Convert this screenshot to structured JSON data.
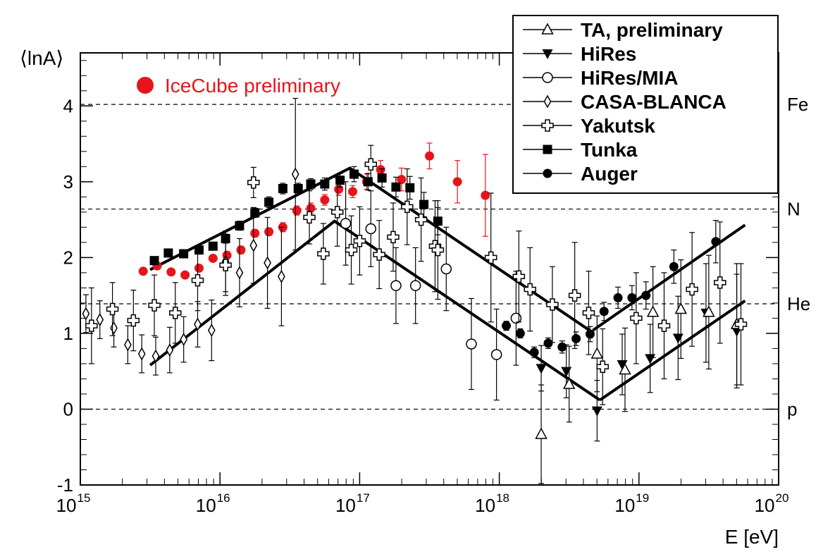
{
  "chart_data": {
    "type": "scatter",
    "title": "",
    "xlabel": "E [eV]",
    "ylabel": "⟨lnA⟩",
    "x_scale": "log10",
    "xlim_log10": [
      15,
      20
    ],
    "ylim": [
      -1,
      4.7
    ],
    "x_ticks": [
      {
        "base": "10",
        "exp": "15",
        "value": 15
      },
      {
        "base": "10",
        "exp": "16",
        "value": 16
      },
      {
        "base": "10",
        "exp": "17",
        "value": 17
      },
      {
        "base": "10",
        "exp": "18",
        "value": 18
      },
      {
        "base": "10",
        "exp": "19",
        "value": 19
      },
      {
        "base": "10",
        "exp": "20",
        "value": 20
      }
    ],
    "y_ticks": [
      {
        "label": "-1",
        "value": -1
      },
      {
        "label": "0",
        "value": 0
      },
      {
        "label": "1",
        "value": 1
      },
      {
        "label": "2",
        "value": 2
      },
      {
        "label": "3",
        "value": 3
      },
      {
        "label": "4",
        "value": 4
      }
    ],
    "reference_lines": [
      {
        "label": "Fe",
        "value": 4.02
      },
      {
        "label": "N",
        "value": 2.64
      },
      {
        "label": "He",
        "value": 1.39
      },
      {
        "label": "p",
        "value": 0
      }
    ],
    "annotation": {
      "label": "IceCube preliminary",
      "color": "#e8141b"
    },
    "model_lines": [
      {
        "name": "upper",
        "points": [
          [
            15.5,
            1.84
          ],
          [
            16.93,
            3.18
          ],
          [
            18.67,
            1.01
          ]
        ]
      },
      {
        "name": "upper-rise",
        "points": [
          [
            18.67,
            1.04
          ],
          [
            19.76,
            2.43
          ]
        ]
      },
      {
        "name": "lower",
        "points": [
          [
            15.5,
            0.58
          ],
          [
            16.82,
            2.48
          ],
          [
            18.72,
            0.12
          ]
        ]
      },
      {
        "name": "lower-rise",
        "points": [
          [
            18.72,
            0.12
          ],
          [
            19.76,
            1.43
          ]
        ]
      }
    ],
    "legend": {
      "position": "top-right",
      "entries": [
        {
          "label": "TA, preliminary",
          "marker": "triangle-up-open"
        },
        {
          "label": "HiRes",
          "marker": "triangle-down-filled"
        },
        {
          "label": "HiRes/MIA",
          "marker": "circle-open"
        },
        {
          "label": "CASA-BLANCA",
          "marker": "diamond-open"
        },
        {
          "label": "Yakutsk",
          "marker": "cross-open"
        },
        {
          "label": "Tunka",
          "marker": "square-filled"
        },
        {
          "label": "Auger",
          "marker": "circle-filled"
        }
      ]
    },
    "series": [
      {
        "name": "IceCube preliminary",
        "marker": "circle-filled",
        "color": "#e8141b",
        "points": [
          [
            15.45,
            1.82,
            0.04
          ],
          [
            15.55,
            1.89,
            0.04
          ],
          [
            15.65,
            1.81,
            0.04
          ],
          [
            15.75,
            1.77,
            0.04
          ],
          [
            15.85,
            1.86,
            0.04
          ],
          [
            15.95,
            1.99,
            0.04
          ],
          [
            16.05,
            2.03,
            0.05
          ],
          [
            16.15,
            2.1,
            0.05
          ],
          [
            16.25,
            2.32,
            0.05
          ],
          [
            16.35,
            2.34,
            0.05
          ],
          [
            16.45,
            2.4,
            0.06
          ],
          [
            16.55,
            2.62,
            0.06
          ],
          [
            16.65,
            2.65,
            0.07
          ],
          [
            16.75,
            2.76,
            0.07
          ],
          [
            16.85,
            2.9,
            0.08
          ],
          [
            16.95,
            2.87,
            0.08
          ],
          [
            17.05,
            3.0,
            0.1
          ],
          [
            17.15,
            3.16,
            0.12
          ],
          [
            17.3,
            3.03,
            0.15
          ],
          [
            17.5,
            3.34,
            0.17
          ],
          [
            17.7,
            3.0,
            0.28
          ],
          [
            17.9,
            2.82,
            0.54
          ]
        ]
      },
      {
        "name": "Tunka",
        "marker": "square-filled",
        "points": [
          [
            15.53,
            1.96,
            0.05
          ],
          [
            15.63,
            2.06,
            0.05
          ],
          [
            15.74,
            2.05,
            0.05
          ],
          [
            15.85,
            2.1,
            0.05
          ],
          [
            15.95,
            2.15,
            0.05
          ],
          [
            16.04,
            2.25,
            0.06
          ],
          [
            16.14,
            2.42,
            0.06
          ],
          [
            16.25,
            2.59,
            0.06
          ],
          [
            16.35,
            2.73,
            0.07
          ],
          [
            16.45,
            2.91,
            0.07
          ],
          [
            16.56,
            2.91,
            0.07
          ],
          [
            16.65,
            2.97,
            0.07
          ],
          [
            16.75,
            2.97,
            0.08
          ],
          [
            16.86,
            3.02,
            0.09
          ],
          [
            16.96,
            3.1,
            0.1
          ],
          [
            17.06,
            3.0,
            0.11
          ],
          [
            17.16,
            3.05,
            0.12
          ],
          [
            17.26,
            2.93,
            0.13
          ],
          [
            17.36,
            2.92,
            0.15
          ],
          [
            17.46,
            2.7,
            0.16
          ],
          [
            17.56,
            2.48,
            0.18
          ]
        ]
      },
      {
        "name": "Auger",
        "marker": "circle-filled",
        "points": [
          [
            18.05,
            1.1,
            0.06
          ],
          [
            18.15,
            1.0,
            0.06
          ],
          [
            18.25,
            0.75,
            0.07
          ],
          [
            18.35,
            0.87,
            0.07
          ],
          [
            18.45,
            0.82,
            0.08
          ],
          [
            18.55,
            0.93,
            0.09
          ],
          [
            18.65,
            0.99,
            0.1
          ],
          [
            18.75,
            1.29,
            0.12
          ],
          [
            18.85,
            1.47,
            0.14
          ],
          [
            18.95,
            1.47,
            0.16
          ],
          [
            19.05,
            1.5,
            0.18
          ],
          [
            19.25,
            1.88,
            0.22
          ],
          [
            19.55,
            2.21,
            0.28
          ]
        ]
      },
      {
        "name": "HiRes/MIA",
        "marker": "circle-open",
        "points": [
          [
            16.9,
            2.45,
            0.55
          ],
          [
            17.08,
            2.38,
            0.5
          ],
          [
            17.26,
            1.63,
            0.5
          ],
          [
            17.4,
            1.63,
            0.5
          ],
          [
            17.62,
            1.85,
            0.55
          ],
          [
            17.8,
            0.86,
            0.6
          ],
          [
            17.98,
            0.72,
            0.6
          ],
          [
            18.12,
            1.2,
            0.62
          ]
        ]
      },
      {
        "name": "HiRes",
        "marker": "triangle-down-filled",
        "points": [
          [
            18.3,
            0.54,
            0.3
          ],
          [
            18.48,
            0.5,
            0.35
          ],
          [
            18.7,
            -0.02,
            0.4
          ],
          [
            18.88,
            0.59,
            0.4
          ],
          [
            19.08,
            0.67,
            0.45
          ],
          [
            19.28,
            0.94,
            0.55
          ],
          [
            19.48,
            1.27,
            0.65
          ],
          [
            19.7,
            1.03,
            0.75
          ]
        ]
      },
      {
        "name": "TA, preliminary",
        "marker": "triangle-up-open",
        "points": [
          [
            18.3,
            -0.33,
            0.65
          ],
          [
            18.5,
            0.33,
            0.5
          ],
          [
            18.7,
            0.73,
            0.5
          ],
          [
            18.9,
            0.52,
            0.55
          ],
          [
            19.1,
            1.28,
            0.6
          ],
          [
            19.3,
            1.32,
            0.65
          ],
          [
            19.5,
            1.28,
            0.75
          ],
          [
            19.7,
            1.12,
            0.8
          ]
        ]
      },
      {
        "name": "CASA-BLANCA",
        "marker": "diamond-open",
        "points": [
          [
            15.04,
            1.26,
            0.25
          ],
          [
            15.14,
            1.18,
            0.25
          ],
          [
            15.24,
            1.07,
            0.25
          ],
          [
            15.34,
            0.85,
            0.25
          ],
          [
            15.44,
            0.73,
            0.25
          ],
          [
            15.54,
            0.7,
            0.25
          ],
          [
            15.64,
            0.78,
            0.3
          ],
          [
            15.74,
            0.92,
            0.3
          ],
          [
            15.84,
            1.12,
            0.3
          ],
          [
            15.94,
            1.04,
            0.4
          ],
          [
            16.04,
            1.95,
            0.4
          ],
          [
            16.14,
            1.8,
            0.45
          ],
          [
            16.24,
            2.16,
            0.5
          ],
          [
            16.34,
            1.93,
            0.6
          ],
          [
            16.44,
            1.75,
            0.65
          ],
          [
            16.54,
            3.1,
            1.0
          ]
        ]
      },
      {
        "name": "Yakutsk",
        "marker": "cross-open",
        "points": [
          [
            15.08,
            1.1,
            0.5
          ],
          [
            15.23,
            1.32,
            0.35
          ],
          [
            15.38,
            1.17,
            0.4
          ],
          [
            15.53,
            1.37,
            0.4
          ],
          [
            15.68,
            1.27,
            0.4
          ],
          [
            15.84,
            1.7,
            0.4
          ],
          [
            16.04,
            1.9,
            0.4
          ],
          [
            16.24,
            2.99,
            0.2
          ],
          [
            16.64,
            2.53,
            0.35
          ],
          [
            16.74,
            2.05,
            0.4
          ],
          [
            16.84,
            2.6,
            0.45
          ],
          [
            16.94,
            2.1,
            0.45
          ],
          [
            17.0,
            2.22,
            0.45
          ],
          [
            17.08,
            3.23,
            0.25
          ],
          [
            17.14,
            2.04,
            0.45
          ],
          [
            17.24,
            2.27,
            0.45
          ],
          [
            17.34,
            2.67,
            0.5
          ],
          [
            17.44,
            2.5,
            0.55
          ],
          [
            17.54,
            2.15,
            0.6
          ],
          [
            17.56,
            2.1,
            0.65
          ],
          [
            17.94,
            2.0,
            0.85
          ],
          [
            18.14,
            1.75,
            0.6
          ],
          [
            18.22,
            1.58,
            0.55
          ],
          [
            18.38,
            1.38,
            0.5
          ],
          [
            18.54,
            1.5,
            0.7
          ],
          [
            18.64,
            1.27,
            0.55
          ],
          [
            18.74,
            0.56,
            0.5
          ],
          [
            18.98,
            1.2,
            0.6
          ],
          [
            19.18,
            1.1,
            0.7
          ],
          [
            19.38,
            1.58,
            0.75
          ],
          [
            19.58,
            1.67,
            0.8
          ],
          [
            19.73,
            1.12,
            0.8
          ]
        ]
      }
    ]
  }
}
